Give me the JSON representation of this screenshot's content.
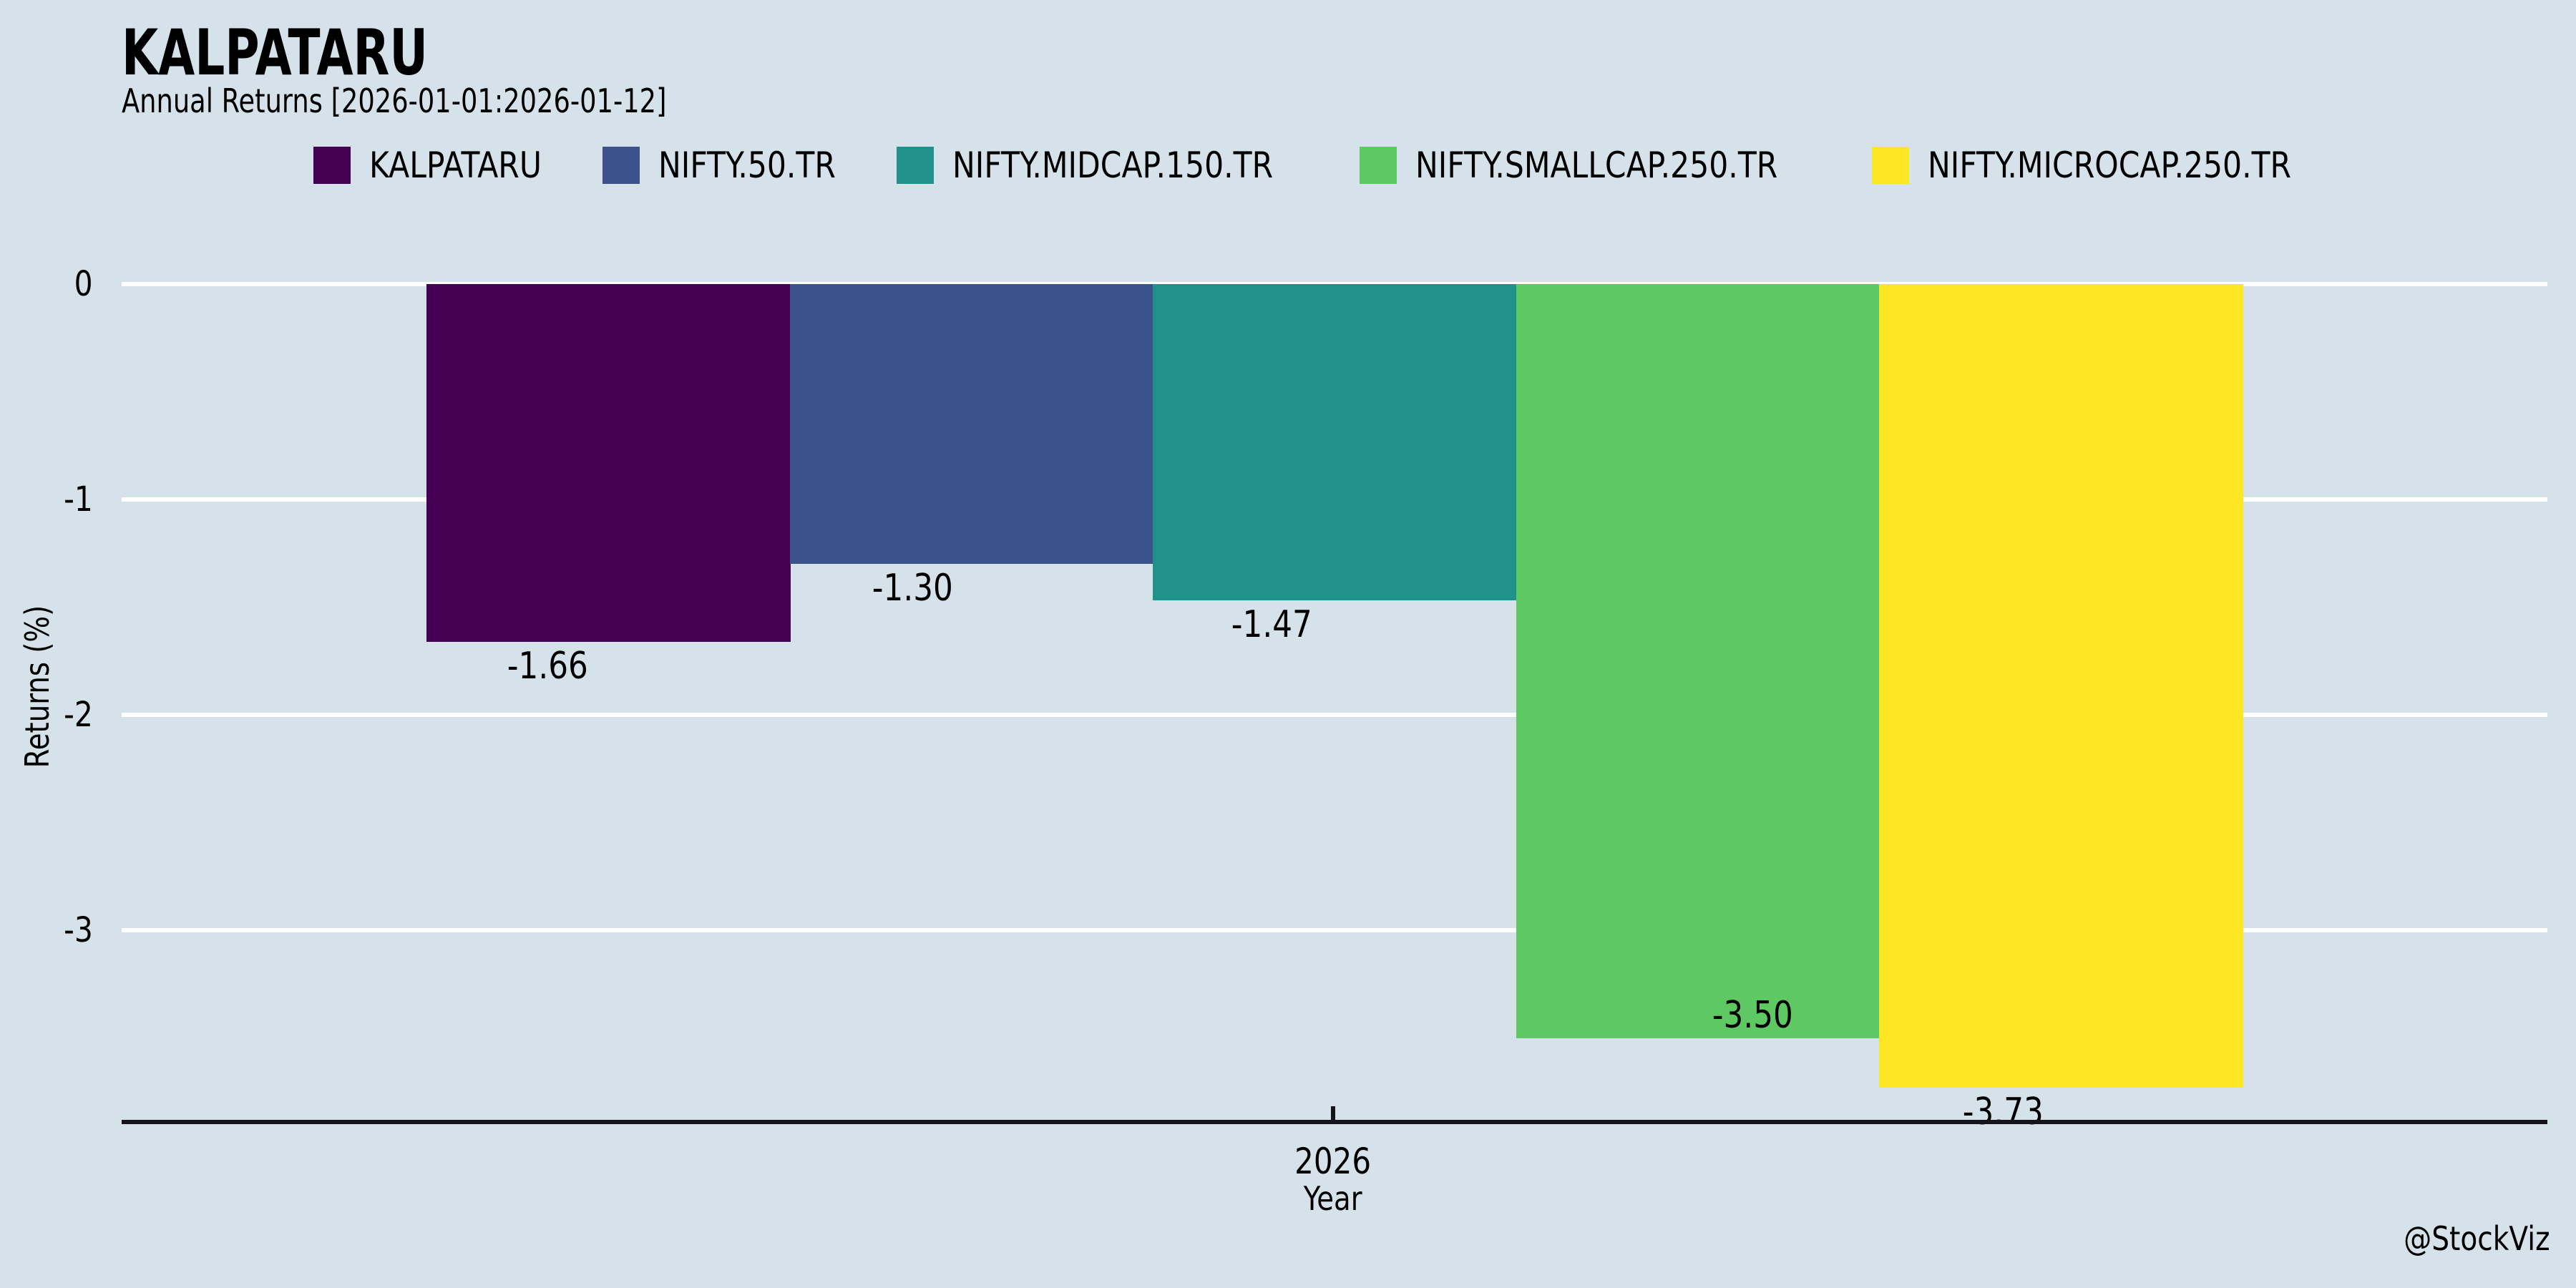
{
  "watermark": "@StockViz",
  "colors": {
    "background": "#d5e2e9",
    "gridline": "#ffffff",
    "axis": "#14141b",
    "text": "#000000"
  },
  "chart_data": {
    "type": "bar",
    "title": "KALPATARU",
    "subtitle": "Annual Returns [2026-01-01:2026-01-12]",
    "xlabel": "Year",
    "ylabel": "Returns (%)",
    "categories": [
      "2026"
    ],
    "series": [
      {
        "name": "KALPATARU",
        "color": "#440154",
        "value": -1.66,
        "label": "-1.66"
      },
      {
        "name": "NIFTY.50.TR",
        "color": "#3b528b",
        "value": -1.3,
        "label": "-1.30"
      },
      {
        "name": "NIFTY.MIDCAP.150.TR",
        "color": "#21918c",
        "value": -1.47,
        "label": "-1.47"
      },
      {
        "name": "NIFTY.SMALLCAP.250.TR",
        "color": "#5ec962",
        "value": -3.5,
        "label": "-3.50"
      },
      {
        "name": "NIFTY.MICROCAP.250.TR",
        "color": "#fde725",
        "value": -3.73,
        "label": "-3.73"
      }
    ],
    "y_ticks": [
      0,
      -1,
      -2,
      -3
    ],
    "ylim": [
      0,
      -3.89
    ],
    "grid": "horizontal-white",
    "legend_position": "top"
  }
}
